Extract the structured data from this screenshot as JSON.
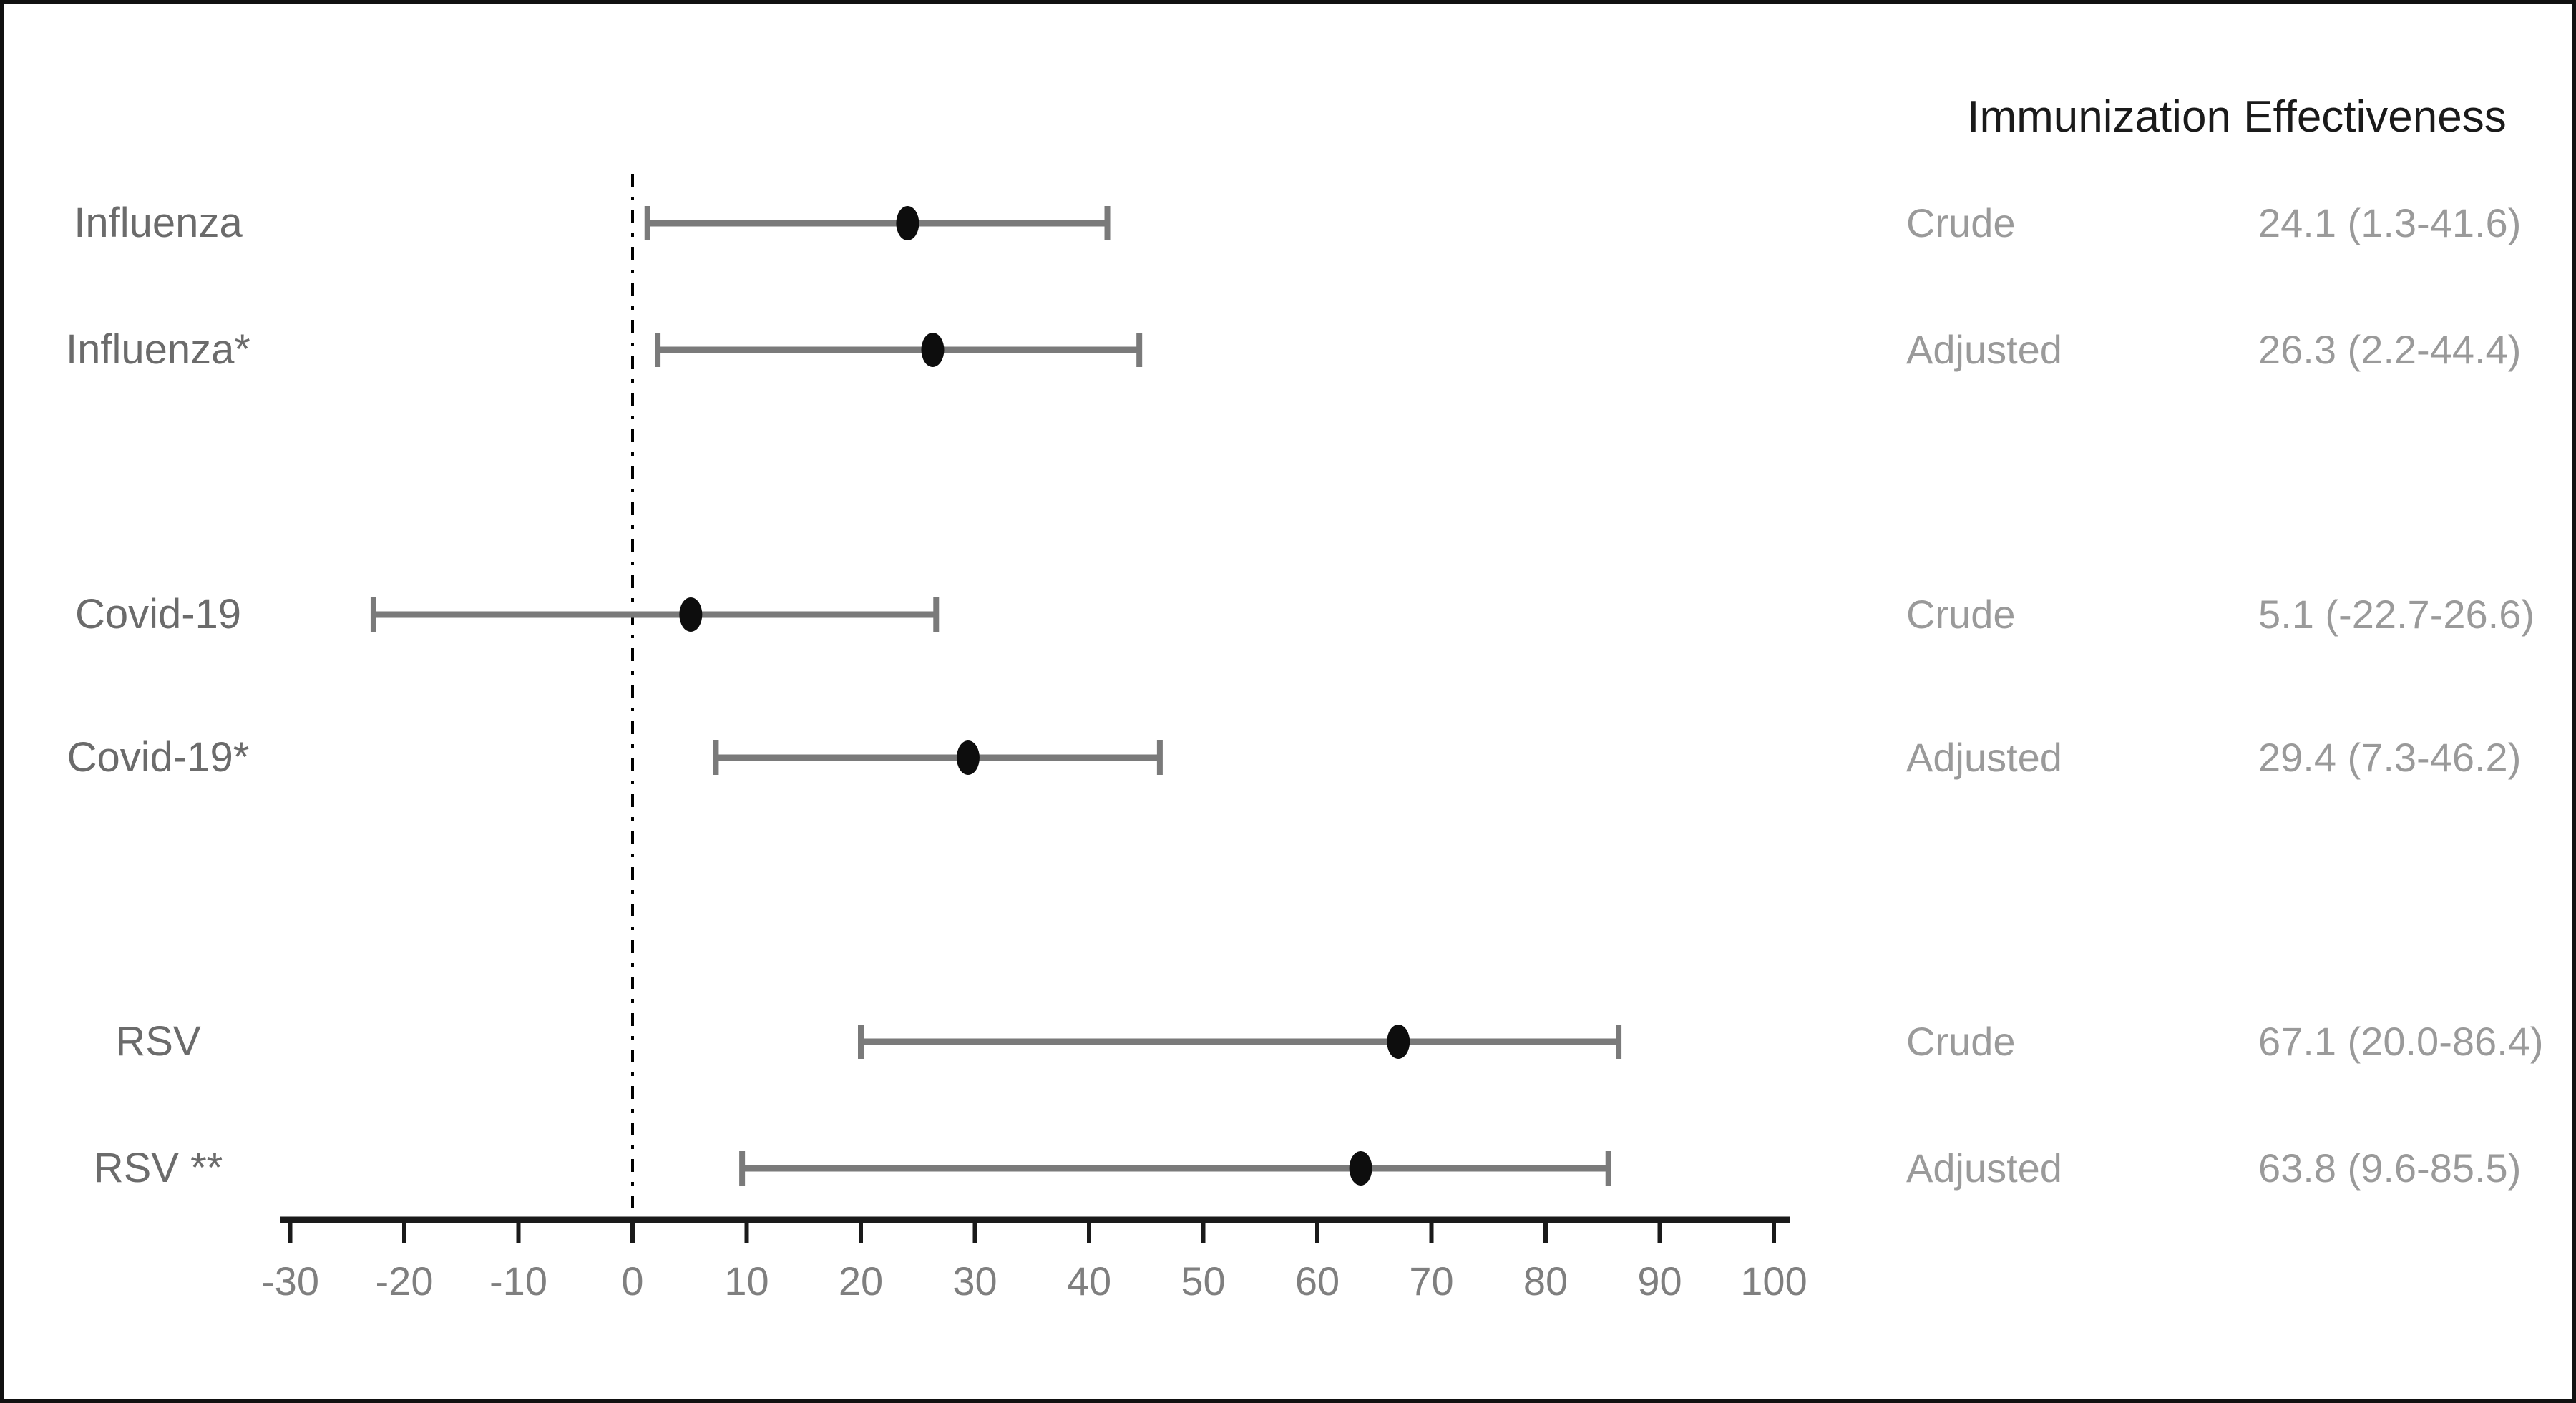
{
  "title": "Immunization Effectiveness",
  "colors": {
    "background": "#ffffff",
    "border": "#111111",
    "title_text": "#1a1a1a",
    "row_label_text": "#6b6b6b",
    "value_text": "#9a9a9a",
    "axis": "#1a1a1a",
    "tick_label_text": "#7f7f7f",
    "error_bar": "#7a7a7a",
    "marker": "#0d0d0d",
    "reference_line": "#000000"
  },
  "chart_data": {
    "type": "forest",
    "title": "Immunization Effectiveness",
    "x_axis": {
      "min": -30,
      "max": 100,
      "tick_step": 10,
      "tick_labels": [
        "-30",
        "-20",
        "-10",
        "0",
        "10",
        "20",
        "30",
        "40",
        "50",
        "60",
        "70",
        "80",
        "90",
        "100"
      ]
    },
    "reference_line_x": 0,
    "legend_position": "none",
    "grid": false,
    "rows": [
      {
        "label": "Influenza",
        "type": "Crude",
        "estimate": 24.1,
        "ci_low": 1.3,
        "ci_high": 41.6,
        "display": "24.1 (1.3-41.6)"
      },
      {
        "label": "Influenza*",
        "type": "Adjusted",
        "estimate": 26.3,
        "ci_low": 2.2,
        "ci_high": 44.4,
        "display": "26.3 (2.2-44.4)"
      },
      {
        "label": "Covid-19",
        "type": "Crude",
        "estimate": 5.1,
        "ci_low": -22.7,
        "ci_high": 26.6,
        "display": "5.1 (-22.7-26.6)"
      },
      {
        "label": "Covid-19*",
        "type": "Adjusted",
        "estimate": 29.4,
        "ci_low": 7.3,
        "ci_high": 46.2,
        "display": "29.4 (7.3-46.2)"
      },
      {
        "label": "RSV",
        "type": "Crude",
        "estimate": 67.1,
        "ci_low": 20.0,
        "ci_high": 86.4,
        "display": "67.1 (20.0-86.4)"
      },
      {
        "label": "RSV **",
        "type": "Adjusted",
        "estimate": 63.8,
        "ci_low": 9.6,
        "ci_high": 85.5,
        "display": "63.8 (9.6-85.5)"
      }
    ]
  }
}
